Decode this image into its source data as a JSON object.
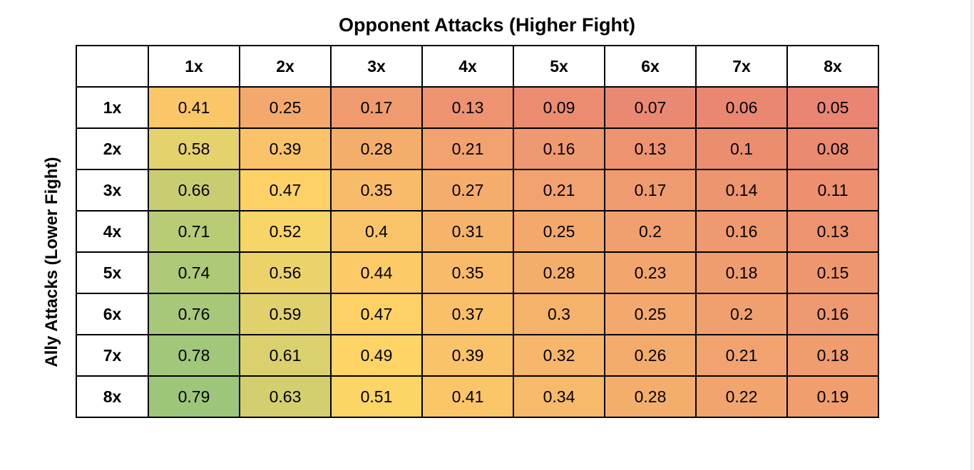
{
  "page": {
    "background": "#ffffff",
    "edge_strip_color": "#f1f1f1"
  },
  "chart_data": {
    "type": "heatmap",
    "title": "Opponent Attacks (Higher Fight)",
    "ylabel": "Ally Attacks (Lower Fight)",
    "columns": [
      "1x",
      "2x",
      "3x",
      "4x",
      "5x",
      "6x",
      "7x",
      "8x"
    ],
    "rows": [
      "1x",
      "2x",
      "3x",
      "4x",
      "5x",
      "6x",
      "7x",
      "8x"
    ],
    "values": [
      [
        0.41,
        0.25,
        0.17,
        0.13,
        0.09,
        0.07,
        0.06,
        0.05
      ],
      [
        0.58,
        0.39,
        0.28,
        0.21,
        0.16,
        0.13,
        0.1,
        0.08
      ],
      [
        0.66,
        0.47,
        0.35,
        0.27,
        0.21,
        0.17,
        0.14,
        0.11
      ],
      [
        0.71,
        0.52,
        0.4,
        0.31,
        0.25,
        0.2,
        0.16,
        0.13
      ],
      [
        0.74,
        0.56,
        0.44,
        0.35,
        0.28,
        0.23,
        0.18,
        0.15
      ],
      [
        0.76,
        0.59,
        0.47,
        0.37,
        0.3,
        0.25,
        0.2,
        0.16
      ],
      [
        0.78,
        0.61,
        0.49,
        0.39,
        0.32,
        0.26,
        0.21,
        0.18
      ],
      [
        0.79,
        0.63,
        0.51,
        0.41,
        0.34,
        0.28,
        0.22,
        0.19
      ]
    ],
    "colorscale": {
      "min": 0,
      "mid": 0.5,
      "max": 1,
      "min_color": "#E67C73",
      "mid_color": "#FFD666",
      "max_color": "#57BB8A"
    },
    "grid_color": "#000000",
    "text_color": "#000000",
    "legend_position": "none",
    "grid": true
  }
}
